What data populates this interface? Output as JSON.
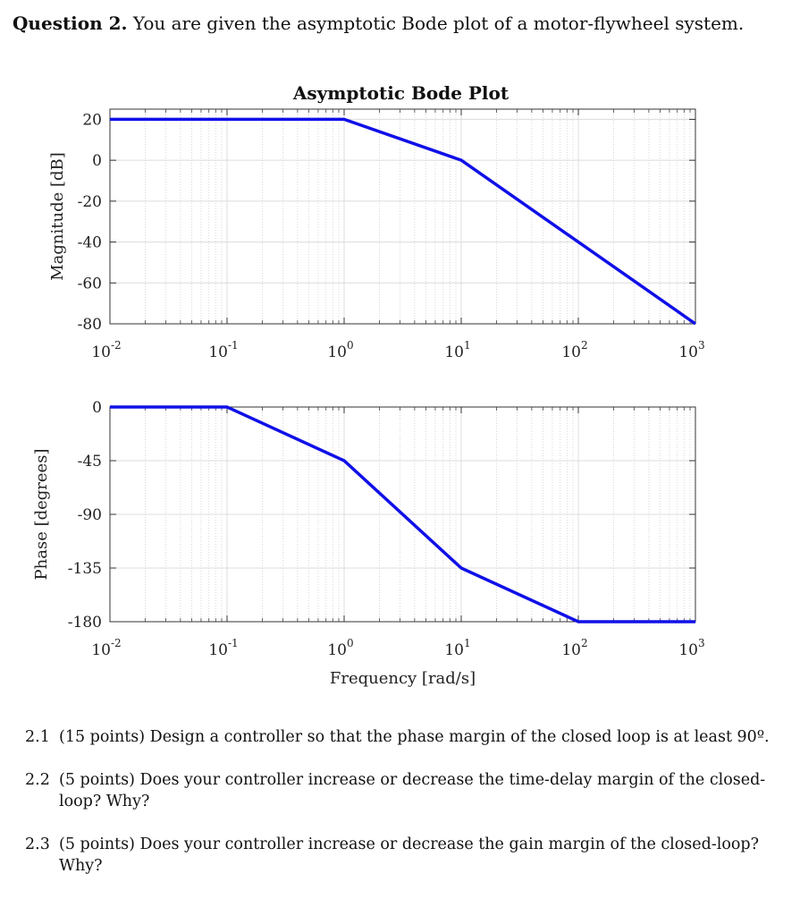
{
  "header": {
    "label": "Question 2.",
    "text": "You are given the asymptotic Bode plot of a motor-flywheel system."
  },
  "chart_data": [
    {
      "type": "line",
      "title": "Asymptotic Bode Plot",
      "xlabel": "",
      "ylabel": "Magnitude [dB]",
      "x_scale": "log",
      "xlim": [
        0.01,
        1000
      ],
      "ylim": [
        -80,
        25
      ],
      "yticks": [
        20,
        0,
        -20,
        -40,
        -60,
        -80
      ],
      "xtick_labels": [
        {
          "base": "10",
          "exp": "-2"
        },
        {
          "base": "10",
          "exp": "-1"
        },
        {
          "base": "10",
          "exp": "0"
        },
        {
          "base": "10",
          "exp": "1"
        },
        {
          "base": "10",
          "exp": "2"
        },
        {
          "base": "10",
          "exp": "3"
        }
      ],
      "grid": true,
      "color": "#1010e8",
      "series": [
        {
          "x": [
            0.01,
            1,
            10,
            1000
          ],
          "y": [
            20,
            20,
            0,
            -80
          ]
        }
      ]
    },
    {
      "type": "line",
      "title": "",
      "xlabel": "Frequency [rad/s]",
      "ylabel": "Phase [degrees]",
      "x_scale": "log",
      "xlim": [
        0.01,
        1000
      ],
      "ylim": [
        -180,
        0
      ],
      "yticks": [
        0,
        -45,
        -90,
        -135,
        -180
      ],
      "xtick_labels": [
        {
          "base": "10",
          "exp": "-2"
        },
        {
          "base": "10",
          "exp": "-1"
        },
        {
          "base": "10",
          "exp": "0"
        },
        {
          "base": "10",
          "exp": "1"
        },
        {
          "base": "10",
          "exp": "2"
        },
        {
          "base": "10",
          "exp": "3"
        }
      ],
      "grid": true,
      "color": "#1010e8",
      "series": [
        {
          "x": [
            0.01,
            0.1,
            1,
            10,
            100,
            1000
          ],
          "y": [
            0,
            0,
            -45,
            -135,
            -180,
            -180
          ]
        }
      ]
    }
  ],
  "questions": [
    {
      "num": "2.1",
      "text": "(15 points) Design a controller so that the phase margin of the closed loop is at least 90º."
    },
    {
      "num": "2.2",
      "text": "(5 points) Does your controller increase or decrease the time-delay margin of the closed-loop? Why?"
    },
    {
      "num": "2.3",
      "text": "(5 points) Does your controller increase or decrease the gain margin of the closed-loop? Why?"
    }
  ]
}
